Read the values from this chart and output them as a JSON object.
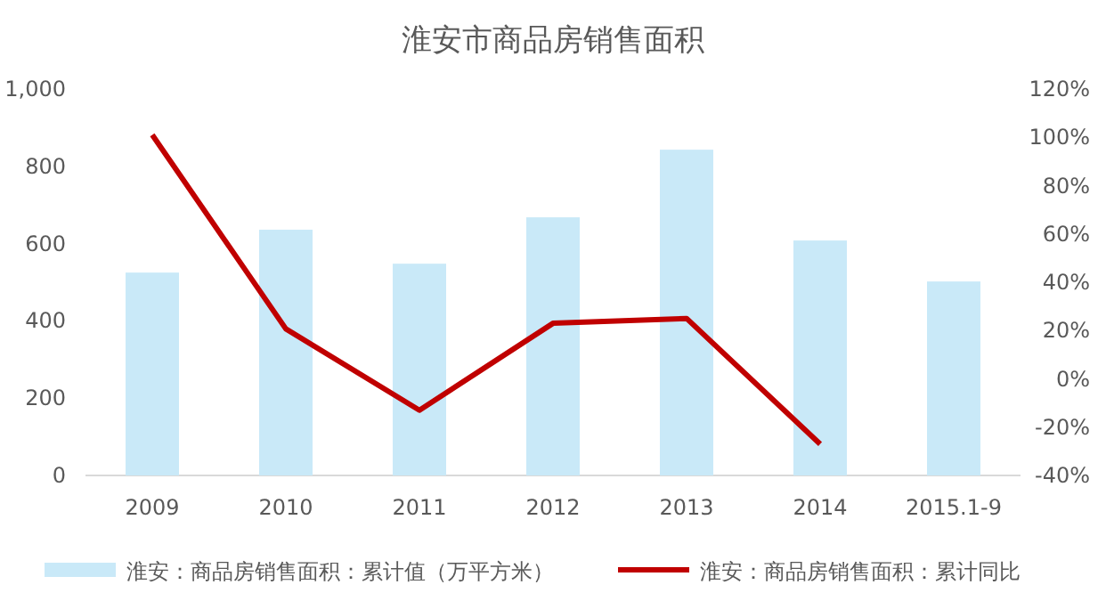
{
  "chart_data": {
    "type": "bar",
    "title": "淮安市商品房销售面积",
    "categories": [
      "2009",
      "2010",
      "2011",
      "2012",
      "2013",
      "2014",
      "2015.1-9"
    ],
    "series": [
      {
        "name": "淮安：商品房销售面积：累计值（万平方米）",
        "color": "#c9e9f8",
        "values": [
          525,
          636,
          548,
          668,
          843,
          608,
          502
        ]
      },
      {
        "name": "淮安：商品房销售面积：累计同比",
        "type": "line",
        "axis": "y2",
        "color": "#c00000",
        "values": [
          101,
          20.7,
          -13,
          23,
          25,
          -27,
          null
        ]
      }
    ],
    "ylim": [
      0,
      1000
    ],
    "yticks": [
      0,
      200,
      400,
      600,
      800,
      {
        "value": 1000,
        "label": "1,000"
      }
    ],
    "y2lim": [
      -40,
      120
    ],
    "y2ticks": [
      {
        "value": -40,
        "label": "-40%"
      },
      {
        "value": -20,
        "label": "-20%"
      },
      {
        "value": 0,
        "label": "0%"
      },
      {
        "value": 20,
        "label": "20%"
      },
      {
        "value": 40,
        "label": "40%"
      },
      {
        "value": 60,
        "label": "60%"
      },
      {
        "value": 80,
        "label": "80%"
      },
      {
        "value": 100,
        "label": "100%"
      },
      {
        "value": 120,
        "label": "120%"
      }
    ],
    "grid": false,
    "legend": "bottom",
    "marker": "none",
    "line_style": "solid"
  }
}
